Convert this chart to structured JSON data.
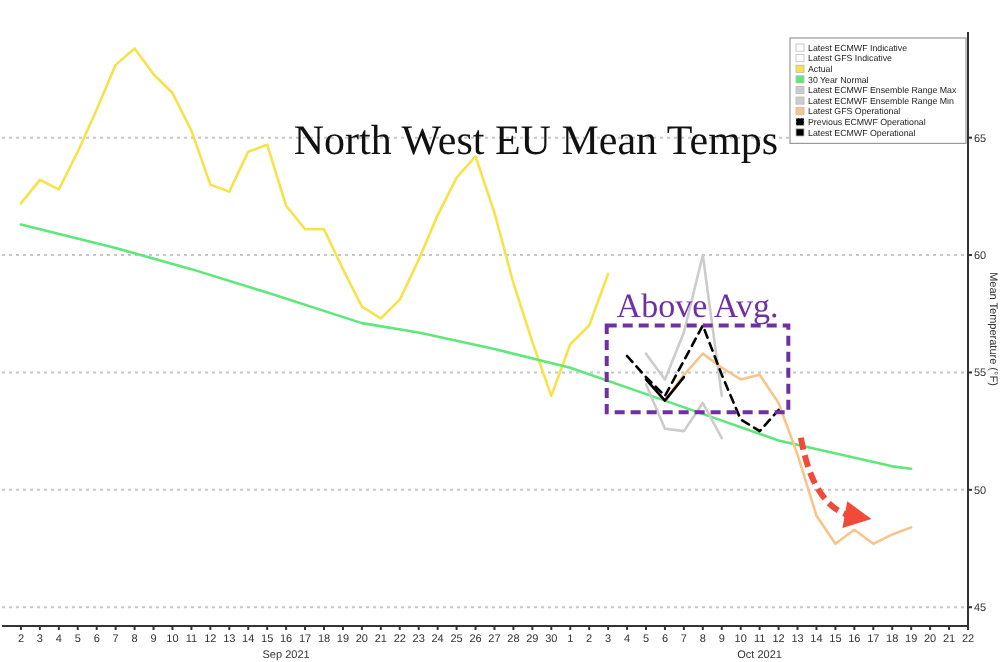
{
  "chart_data": {
    "type": "line",
    "title": "North West EU Mean Temps",
    "ylabel": "Mean Temperature (°F)",
    "annotations": [
      "Above Avg."
    ],
    "xlim": [
      "2021-09-01",
      "2021-10-22"
    ],
    "xticks": [
      {
        "value": "2021-09-02",
        "label": "2"
      },
      {
        "value": "2021-09-03",
        "label": "3"
      },
      {
        "value": "2021-09-04",
        "label": "4"
      },
      {
        "value": "2021-09-05",
        "label": "5"
      },
      {
        "value": "2021-09-06",
        "label": "6"
      },
      {
        "value": "2021-09-07",
        "label": "7"
      },
      {
        "value": "2021-09-08",
        "label": "8"
      },
      {
        "value": "2021-09-09",
        "label": "9"
      },
      {
        "value": "2021-09-10",
        "label": "10"
      },
      {
        "value": "2021-09-11",
        "label": "11"
      },
      {
        "value": "2021-09-12",
        "label": "12"
      },
      {
        "value": "2021-09-13",
        "label": "13"
      },
      {
        "value": "2021-09-14",
        "label": "14"
      },
      {
        "value": "2021-09-15",
        "label": "15"
      },
      {
        "value": "2021-09-16",
        "label": "16\nSep 2021"
      },
      {
        "value": "2021-09-17",
        "label": "17"
      },
      {
        "value": "2021-09-18",
        "label": "18"
      },
      {
        "value": "2021-09-19",
        "label": "19"
      },
      {
        "value": "2021-09-20",
        "label": "20"
      },
      {
        "value": "2021-09-21",
        "label": "21"
      },
      {
        "value": "2021-09-22",
        "label": "22"
      },
      {
        "value": "2021-09-23",
        "label": "23"
      },
      {
        "value": "2021-09-24",
        "label": "24"
      },
      {
        "value": "2021-09-25",
        "label": "25"
      },
      {
        "value": "2021-09-26",
        "label": "26"
      },
      {
        "value": "2021-09-27",
        "label": "27"
      },
      {
        "value": "2021-09-28",
        "label": "28"
      },
      {
        "value": "2021-09-29",
        "label": "29"
      },
      {
        "value": "2021-09-30",
        "label": "30"
      },
      {
        "value": "2021-10-01",
        "label": "1"
      },
      {
        "value": "2021-10-02",
        "label": "2"
      },
      {
        "value": "2021-10-03",
        "label": "3"
      },
      {
        "value": "2021-10-04",
        "label": "4"
      },
      {
        "value": "2021-10-05",
        "label": "5"
      },
      {
        "value": "2021-10-06",
        "label": "6"
      },
      {
        "value": "2021-10-07",
        "label": "7"
      },
      {
        "value": "2021-10-08",
        "label": "8"
      },
      {
        "value": "2021-10-09",
        "label": "9"
      },
      {
        "value": "2021-10-10",
        "label": "10"
      },
      {
        "value": "2021-10-11",
        "label": "11\nOct 2021"
      },
      {
        "value": "2021-10-12",
        "label": "12"
      },
      {
        "value": "2021-10-13",
        "label": "13"
      },
      {
        "value": "2021-10-14",
        "label": "14"
      },
      {
        "value": "2021-10-15",
        "label": "15"
      },
      {
        "value": "2021-10-16",
        "label": "16"
      },
      {
        "value": "2021-10-17",
        "label": "17"
      },
      {
        "value": "2021-10-18",
        "label": "18"
      },
      {
        "value": "2021-10-19",
        "label": "19"
      },
      {
        "value": "2021-10-20",
        "label": "20"
      },
      {
        "value": "2021-10-21",
        "label": "21"
      },
      {
        "value": "2021-10-22",
        "label": "22"
      }
    ],
    "ylim": [
      44.2,
      69.5
    ],
    "yticks": [
      45,
      50,
      55,
      60,
      65
    ],
    "grid": "y",
    "legend": "top right",
    "series": [
      {
        "name": "Latest ECMWF Indicative",
        "color": "#ffffff"
      },
      {
        "name": "Latest GFS Indicative",
        "color": "#ffffff"
      },
      {
        "name": "Actual",
        "color": "#f7e24a",
        "x": [
          "2021-09-02",
          "2021-09-03",
          "2021-09-04",
          "2021-09-05",
          "2021-09-06",
          "2021-09-07",
          "2021-09-08",
          "2021-09-09",
          "2021-09-10",
          "2021-09-11",
          "2021-09-12",
          "2021-09-13",
          "2021-09-14",
          "2021-09-15",
          "2021-09-16",
          "2021-09-17",
          "2021-09-18",
          "2021-09-19",
          "2021-09-20",
          "2021-09-21",
          "2021-09-22",
          "2021-09-23",
          "2021-09-24",
          "2021-09-25",
          "2021-09-26",
          "2021-09-27",
          "2021-09-28",
          "2021-09-29",
          "2021-09-30",
          "2021-10-01",
          "2021-10-02",
          "2021-10-03"
        ],
        "values": [
          62.2,
          63.2,
          62.8,
          64.4,
          66.2,
          68.1,
          68.8,
          67.7,
          66.9,
          65.3,
          63.0,
          62.7,
          64.4,
          64.7,
          62.1,
          61.1,
          61.1,
          59.4,
          57.8,
          57.3,
          58.1,
          59.8,
          61.7,
          63.3,
          64.2,
          61.8,
          58.8,
          56.3,
          54.0,
          56.2,
          57.0,
          59.2
        ]
      },
      {
        "name": "30 Year Normal",
        "color": "#5ee87a",
        "x": [
          "2021-09-02",
          "2021-09-07",
          "2021-09-11",
          "2021-09-15",
          "2021-09-20",
          "2021-09-23",
          "2021-09-27",
          "2021-10-01",
          "2021-10-06",
          "2021-10-12",
          "2021-10-18",
          "2021-10-19"
        ],
        "values": [
          61.3,
          60.3,
          59.4,
          58.4,
          57.1,
          56.7,
          56.0,
          55.2,
          53.8,
          52.1,
          51.0,
          50.9
        ]
      },
      {
        "name": "Latest ECMWF Ensemble Range Max",
        "color": "#cccccc",
        "x": [
          "2021-10-05",
          "2021-10-06",
          "2021-10-07",
          "2021-10-08",
          "2021-10-09"
        ],
        "values": [
          55.8,
          54.7,
          56.7,
          60.0,
          54.0
        ]
      },
      {
        "name": "Latest ECMWF Ensemble Range Min",
        "color": "#cccccc",
        "x": [
          "2021-10-05",
          "2021-10-06",
          "2021-10-07",
          "2021-10-08",
          "2021-10-09"
        ],
        "values": [
          54.5,
          52.6,
          52.5,
          53.7,
          52.2
        ]
      },
      {
        "name": "Latest GFS Operational",
        "color": "#f9c48a",
        "x": [
          "2021-10-05",
          "2021-10-06",
          "2021-10-07",
          "2021-10-08",
          "2021-10-09",
          "2021-10-10",
          "2021-10-11",
          "2021-10-12",
          "2021-10-13",
          "2021-10-14",
          "2021-10-15",
          "2021-10-16",
          "2021-10-17",
          "2021-10-18",
          "2021-10-19"
        ],
        "values": [
          54.7,
          53.8,
          54.9,
          55.8,
          55.2,
          54.7,
          54.9,
          53.7,
          51.5,
          48.9,
          47.7,
          48.3,
          47.7,
          48.1,
          48.4
        ]
      },
      {
        "name": "Previous ECMWF Operational",
        "color": "#000000",
        "line_style": "dashed",
        "x": [
          "2021-10-04",
          "2021-10-05",
          "2021-10-06",
          "2021-10-07",
          "2021-10-08",
          "2021-10-09",
          "2021-10-10",
          "2021-10-11",
          "2021-10-12"
        ],
        "values": [
          55.7,
          54.8,
          54.0,
          55.5,
          57.0,
          54.9,
          53.0,
          52.5,
          53.4
        ]
      },
      {
        "name": "Latest ECMWF Operational",
        "color": "#000000",
        "x": [
          "2021-10-05",
          "2021-10-06",
          "2021-10-07"
        ],
        "values": [
          54.7,
          53.8,
          54.8
        ]
      }
    ]
  }
}
